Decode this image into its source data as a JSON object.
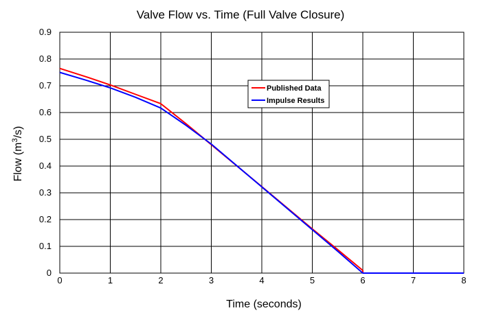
{
  "chart_data": {
    "type": "line",
    "title": "Valve Flow vs. Time (Full Valve Closure)",
    "xlabel": "Time (seconds)",
    "ylabel_main": "Flow (m",
    "ylabel_sup": "3",
    "ylabel_end": "/s)",
    "xlim": [
      0,
      8
    ],
    "ylim": [
      0,
      0.9
    ],
    "x_ticks": [
      "0",
      "1",
      "2",
      "3",
      "4",
      "5",
      "6",
      "7",
      "8"
    ],
    "y_ticks": [
      "0",
      "0.1",
      "0.2",
      "0.3",
      "0.4",
      "0.5",
      "0.6",
      "0.7",
      "0.8",
      "0.9"
    ],
    "grid": true,
    "legend_position": "upper-right-inside",
    "series": [
      {
        "name": "Published Data",
        "color": "#ff0000",
        "points": [
          [
            0,
            0.765
          ],
          [
            0.5,
            0.735
          ],
          [
            1,
            0.703
          ],
          [
            1.5,
            0.668
          ],
          [
            2,
            0.633
          ],
          [
            2.5,
            0.558
          ],
          [
            3,
            0.48
          ],
          [
            4,
            0.323
          ],
          [
            5,
            0.165
          ],
          [
            5.5,
            0.088
          ],
          [
            6,
            0.01
          ],
          [
            6,
            0
          ]
        ]
      },
      {
        "name": "Impulse Results",
        "color": "#0000ff",
        "points": [
          [
            0,
            0.75
          ],
          [
            0.5,
            0.722
          ],
          [
            1,
            0.692
          ],
          [
            1.5,
            0.657
          ],
          [
            2,
            0.617
          ],
          [
            2.5,
            0.552
          ],
          [
            3,
            0.482
          ],
          [
            4,
            0.322
          ],
          [
            5,
            0.162
          ],
          [
            5.5,
            0.082
          ],
          [
            6,
            0
          ],
          [
            8,
            0
          ]
        ]
      }
    ]
  }
}
